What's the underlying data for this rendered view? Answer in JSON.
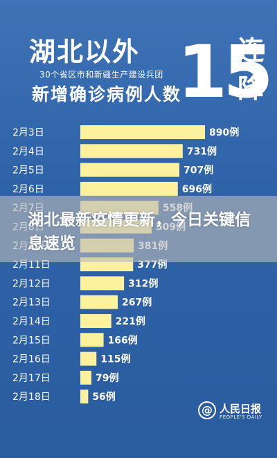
{
  "header": {
    "title": "湖北以外",
    "subtitle_small": "30个省区市和新疆生产建设兵团",
    "subtitle_large": "新增确诊病例人数",
    "streak_number": "15",
    "streak_suffix": "连降"
  },
  "overlay": {
    "headline": "湖北最新疫情更新，今日关键信息速览"
  },
  "logo": {
    "symbol": "@",
    "name_cn": "人民日报",
    "name_en": "PEOPLE'S DAILY"
  },
  "colors": {
    "background": "#2f63a8",
    "bar": "#fdf19d",
    "text": "#ffffff"
  },
  "chart_data": {
    "type": "bar",
    "orientation": "horizontal",
    "categories": [
      "2月3日",
      "2月4日",
      "2月5日",
      "2月6日",
      "2月7日",
      "2月8日",
      "2月10日",
      "2月11日",
      "2月12日",
      "2月13日",
      "2月14日",
      "2月15日",
      "2月16日",
      "2月17日",
      "2月18日"
    ],
    "values": [
      890,
      731,
      707,
      696,
      558,
      509,
      381,
      377,
      312,
      267,
      221,
      166,
      115,
      79,
      56
    ],
    "data_labels": [
      "890例",
      "731例",
      "707例",
      "696例",
      "558例",
      "509例",
      "381例",
      "377例",
      "312例",
      "267例",
      "221例",
      "166例",
      "115例",
      "79例",
      "56例"
    ],
    "title": "湖北以外30个省区市和新疆生产建设兵团新增确诊病例人数15连降",
    "xlabel": "",
    "ylabel": "",
    "xlim": [
      0,
      890
    ],
    "grid": false,
    "legend": "none"
  }
}
